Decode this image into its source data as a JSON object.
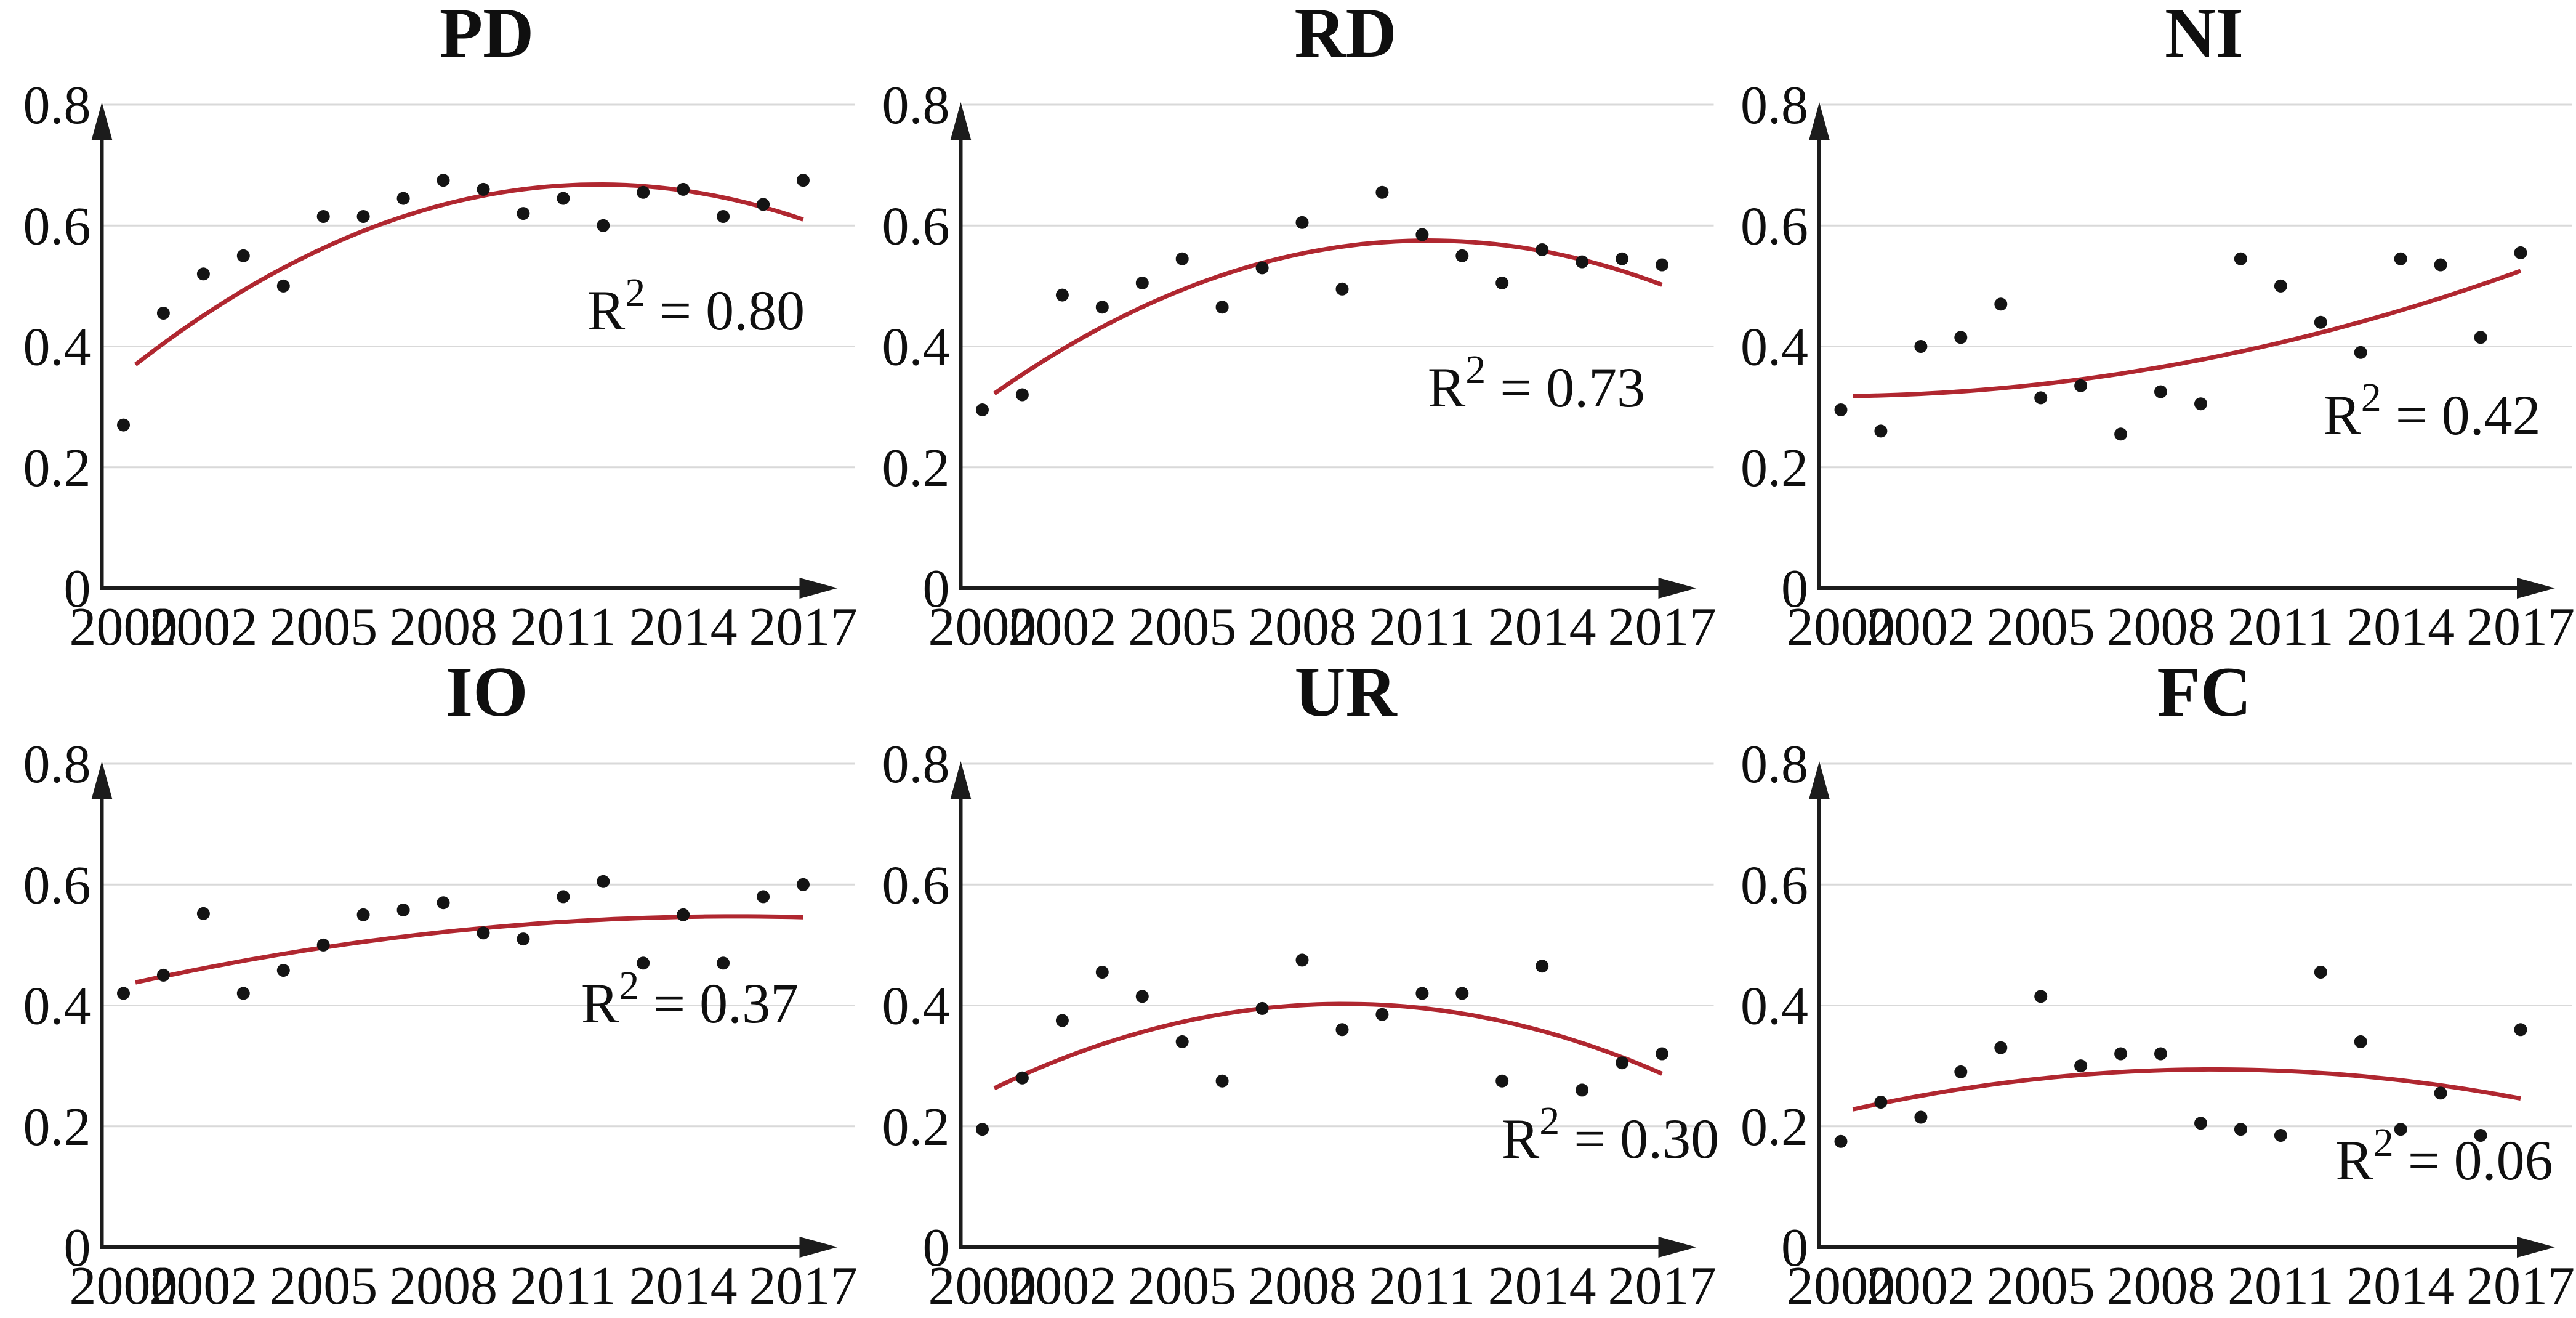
{
  "figure": {
    "background_color": "#ffffff",
    "curve_color": "#b02730",
    "point_color": "#141414",
    "gridline_color": "#d9d9d9",
    "axis_color": "#1c1c1c",
    "text_color": "#0f0f0f",
    "y_axis_range": [
      0,
      0.8
    ],
    "y_tick_labels": [
      "0.8",
      "0.6",
      "0.4",
      "0.2",
      "0"
    ],
    "y_tick_values": [
      0.8,
      0.6,
      0.4,
      0.2,
      0
    ],
    "x_tick_labels": [
      "2000",
      "2002",
      "2005",
      "2008",
      "2011",
      "2014",
      "2017"
    ],
    "x_tick_years": [
      2000,
      2002,
      2005,
      2008,
      2011,
      2014,
      2017
    ],
    "grid_on": true,
    "legend": "none"
  },
  "chart_data": [
    {
      "type": "scatter",
      "title": "PD",
      "r2_prefix": "R",
      "r2_sup": "2",
      "r2_rest": " = 0.80",
      "r2_label": "R2 = 0.80",
      "r2_value": 0.8,
      "r2_pos": [
        1130,
        535
      ],
      "x": [
        2000,
        2001,
        2002,
        2003,
        2004,
        2005,
        2006,
        2007,
        2008,
        2009,
        2010,
        2011,
        2012,
        2013,
        2014,
        2015,
        2016,
        2017
      ],
      "values": [
        0.27,
        0.455,
        0.52,
        0.55,
        0.5,
        0.615,
        0.615,
        0.645,
        0.675,
        0.66,
        0.62,
        0.645,
        0.6,
        0.655,
        0.66,
        0.615,
        0.635,
        0.675
      ],
      "trend_type": "quadratic",
      "trend_anchors": [
        [
          2000.3,
          0.37
        ],
        [
          2012,
          0.668
        ],
        [
          2017,
          0.61
        ]
      ],
      "xlabel": "",
      "ylabel": "",
      "ylim": [
        0,
        0.8
      ]
    },
    {
      "type": "scatter",
      "title": "RD",
      "r2_prefix": "R",
      "r2_sup": "2",
      "r2_rest": " = 0.73",
      "r2_label": "R2 = 0.73",
      "r2_value": 0.73,
      "r2_pos": [
        1100,
        660
      ],
      "x": [
        2000,
        2001,
        2002,
        2003,
        2004,
        2005,
        2006,
        2007,
        2008,
        2009,
        2010,
        2011,
        2012,
        2013,
        2014,
        2015,
        2016,
        2017
      ],
      "values": [
        0.295,
        0.32,
        0.485,
        0.465,
        0.505,
        0.545,
        0.465,
        0.53,
        0.605,
        0.495,
        0.655,
        0.585,
        0.55,
        0.505,
        0.56,
        0.54,
        0.545,
        0.535
      ],
      "trend_type": "quadratic",
      "trend_anchors": [
        [
          2000.3,
          0.322
        ],
        [
          2011.5,
          0.575
        ],
        [
          2017,
          0.502
        ]
      ],
      "xlabel": "",
      "ylabel": "",
      "ylim": [
        0,
        0.8
      ]
    },
    {
      "type": "scatter",
      "title": "NI",
      "r2_prefix": "R",
      "r2_sup": "2",
      "r2_rest": " = 0.42",
      "r2_label": "R2 = 0.42",
      "r2_value": 0.42,
      "r2_pos": [
        1160,
        705
      ],
      "x": [
        2000,
        2001,
        2002,
        2003,
        2004,
        2005,
        2006,
        2007,
        2008,
        2009,
        2010,
        2011,
        2012,
        2013,
        2014,
        2015,
        2016,
        2017
      ],
      "values": [
        0.295,
        0.26,
        0.4,
        0.415,
        0.47,
        0.315,
        0.335,
        0.255,
        0.325,
        0.305,
        0.545,
        0.5,
        0.44,
        0.39,
        0.545,
        0.535,
        0.415,
        0.555
      ],
      "trend_type": "quadratic",
      "trend_anchors": [
        [
          2000.3,
          0.318
        ],
        [
          2009,
          0.378
        ],
        [
          2017,
          0.525
        ]
      ],
      "xlabel": "",
      "ylabel": "",
      "ylim": [
        0,
        0.8
      ]
    },
    {
      "type": "scatter",
      "title": "IO",
      "r2_prefix": "R",
      "r2_sup": "2",
      "r2_rest": " = 0.37",
      "r2_label": "R2 = 0.37",
      "r2_value": 0.37,
      "r2_pos": [
        1120,
        590
      ],
      "x": [
        2000,
        2001,
        2002,
        2003,
        2004,
        2005,
        2006,
        2007,
        2008,
        2009,
        2010,
        2011,
        2012,
        2013,
        2014,
        2015,
        2016,
        2017
      ],
      "values": [
        0.42,
        0.45,
        0.552,
        0.42,
        0.458,
        0.5,
        0.55,
        0.558,
        0.57,
        0.52,
        0.51,
        0.58,
        0.605,
        0.47,
        0.55,
        0.47,
        0.58,
        0.6
      ],
      "trend_type": "quadratic",
      "trend_anchors": [
        [
          2000.3,
          0.438
        ],
        [
          2009,
          0.528
        ],
        [
          2017,
          0.546
        ]
      ],
      "xlabel": "",
      "ylabel": "",
      "ylim": [
        0,
        0.8
      ]
    },
    {
      "type": "scatter",
      "title": "UR",
      "r2_prefix": "R",
      "r2_sup": "2",
      "r2_rest": " = 0.30",
      "r2_label": "R2 = 0.30",
      "r2_value": 0.3,
      "r2_pos": [
        1220,
        810
      ],
      "x": [
        2000,
        2001,
        2002,
        2003,
        2004,
        2005,
        2006,
        2007,
        2008,
        2009,
        2010,
        2011,
        2012,
        2013,
        2014,
        2015,
        2016,
        2017
      ],
      "values": [
        0.195,
        0.28,
        0.375,
        0.455,
        0.415,
        0.34,
        0.275,
        0.395,
        0.475,
        0.36,
        0.385,
        0.42,
        0.42,
        0.275,
        0.465,
        0.26,
        0.305,
        0.32
      ],
      "trend_type": "quadratic",
      "trend_anchors": [
        [
          2000.3,
          0.263
        ],
        [
          2008.5,
          0.402
        ],
        [
          2017,
          0.287
        ]
      ],
      "xlabel": "",
      "ylabel": "",
      "ylim": [
        0,
        0.8
      ]
    },
    {
      "type": "scatter",
      "title": "FC",
      "r2_prefix": "R",
      "r2_sup": "2",
      "r2_rest": " = 0.06",
      "r2_label": "R2 = 0.06",
      "r2_value": 0.06,
      "r2_pos": [
        1180,
        845
      ],
      "x": [
        2000,
        2001,
        2002,
        2003,
        2004,
        2005,
        2006,
        2007,
        2008,
        2009,
        2010,
        2011,
        2012,
        2013,
        2014,
        2015,
        2016,
        2017
      ],
      "values": [
        0.175,
        0.24,
        0.215,
        0.29,
        0.33,
        0.415,
        0.3,
        0.32,
        0.32,
        0.205,
        0.195,
        0.185,
        0.455,
        0.34,
        0.195,
        0.255,
        0.185,
        0.36
      ],
      "trend_type": "quadratic",
      "trend_anchors": [
        [
          2000.3,
          0.228
        ],
        [
          2009,
          0.294
        ],
        [
          2017,
          0.246
        ]
      ],
      "xlabel": "",
      "ylabel": "",
      "ylim": [
        0,
        0.8
      ]
    }
  ]
}
